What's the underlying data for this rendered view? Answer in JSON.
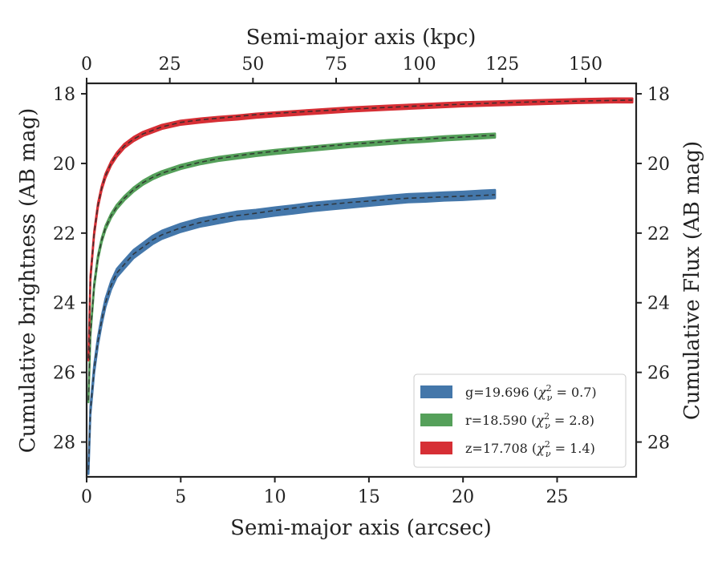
{
  "chart_data": {
    "type": "line",
    "xlabel": "Semi-major axis (arcsec)",
    "x2label": "Semi-major axis (kpc)",
    "ylabel": "Cumulative brightness (AB mag)",
    "y2label": "Cumulative Flux (AB mag)",
    "xlim": [
      0,
      29.2
    ],
    "x2lim": [
      0,
      165.2
    ],
    "ylim": [
      29.0,
      17.7
    ],
    "y_inverted": true,
    "xticks": [
      0,
      5,
      10,
      15,
      20,
      25
    ],
    "x2ticks": [
      0,
      25,
      50,
      75,
      100,
      125,
      150
    ],
    "yticks": [
      18,
      20,
      22,
      24,
      26,
      28
    ],
    "legend_position": "lower-right",
    "series": [
      {
        "name": "g=19.696 (χ²ν = 0.7)",
        "legend_main": "g=19.696 (",
        "legend_chi": "χ",
        "legend_eq": " = 0.7)",
        "color": "#4477aa",
        "width": 0.12,
        "x": [
          0.1,
          0.2,
          0.4,
          0.6,
          0.8,
          1.0,
          1.3,
          1.6,
          2.0,
          2.5,
          3.0,
          3.5,
          4.0,
          5.0,
          6.0,
          7.0,
          8.0,
          9.0,
          10.0,
          11.0,
          12.0,
          13.0,
          14.0,
          15.0,
          16.0,
          17.0,
          18.0,
          19.0,
          20.0,
          21.0,
          21.7
        ],
        "y": [
          28.8,
          27.1,
          25.9,
          25.1,
          24.5,
          24.0,
          23.5,
          23.15,
          22.9,
          22.6,
          22.4,
          22.2,
          22.05,
          21.85,
          21.7,
          21.6,
          21.5,
          21.45,
          21.38,
          21.32,
          21.25,
          21.2,
          21.15,
          21.1,
          21.05,
          21.0,
          20.98,
          20.95,
          20.93,
          20.9,
          20.88
        ],
        "model": [
          28.8,
          27.1,
          25.9,
          25.1,
          24.5,
          24.0,
          23.5,
          23.15,
          22.9,
          22.6,
          22.4,
          22.2,
          22.05,
          21.85,
          21.7,
          21.58,
          21.5,
          21.43,
          21.35,
          21.28,
          21.22,
          21.17,
          21.12,
          21.08,
          21.04,
          21.0,
          20.98,
          20.96,
          20.94,
          20.92,
          20.9
        ]
      },
      {
        "name": "r=18.590 (χ²ν = 2.8)",
        "legend_main": "r=18.590 (",
        "legend_chi": "χ",
        "legend_eq": " = 2.8)",
        "color": "#55a05a",
        "width": 0.06,
        "x": [
          0.1,
          0.2,
          0.4,
          0.6,
          0.8,
          1.0,
          1.3,
          1.6,
          2.0,
          2.5,
          3.0,
          3.5,
          4.0,
          5.0,
          6.0,
          7.0,
          8.0,
          9.0,
          10.0,
          11.0,
          12.0,
          13.0,
          14.0,
          15.0,
          16.0,
          17.0,
          18.0,
          19.0,
          20.0,
          21.0,
          21.7
        ],
        "y": [
          26.8,
          24.9,
          23.5,
          22.7,
          22.2,
          21.85,
          21.5,
          21.25,
          21.0,
          20.75,
          20.55,
          20.4,
          20.28,
          20.1,
          19.97,
          19.87,
          19.8,
          19.73,
          19.67,
          19.62,
          19.57,
          19.52,
          19.47,
          19.43,
          19.39,
          19.35,
          19.32,
          19.28,
          19.25,
          19.22,
          19.2
        ],
        "model": [
          26.8,
          24.9,
          23.5,
          22.7,
          22.2,
          21.85,
          21.5,
          21.25,
          21.0,
          20.75,
          20.55,
          20.4,
          20.28,
          20.1,
          19.97,
          19.86,
          19.78,
          19.71,
          19.65,
          19.59,
          19.54,
          19.49,
          19.45,
          19.41,
          19.37,
          19.33,
          19.3,
          19.27,
          19.24,
          19.21,
          19.19
        ]
      },
      {
        "name": "z=17.708 (χ²ν = 1.4)",
        "legend_main": "z=17.708 (",
        "legend_chi": "χ",
        "legend_eq": " = 1.4)",
        "color": "#d62f35",
        "width": 0.06,
        "x": [
          0.1,
          0.2,
          0.4,
          0.6,
          0.8,
          1.0,
          1.3,
          1.6,
          2.0,
          2.5,
          3.0,
          3.5,
          4.0,
          5.0,
          6.0,
          7.0,
          8.0,
          9.0,
          10.0,
          12.0,
          14.0,
          16.0,
          18.0,
          20.0,
          22.0,
          24.0,
          26.0,
          28.0,
          29.0
        ],
        "y": [
          25.6,
          23.3,
          22.0,
          21.2,
          20.7,
          20.35,
          20.0,
          19.75,
          19.5,
          19.3,
          19.15,
          19.05,
          18.95,
          18.83,
          18.77,
          18.72,
          18.68,
          18.63,
          18.59,
          18.52,
          18.45,
          18.4,
          18.35,
          18.3,
          18.27,
          18.24,
          18.21,
          18.19,
          18.19
        ],
        "model": [
          25.6,
          23.3,
          22.0,
          21.2,
          20.7,
          20.35,
          20.0,
          19.75,
          19.5,
          19.3,
          19.15,
          19.05,
          18.95,
          18.82,
          18.75,
          18.7,
          18.65,
          18.6,
          18.56,
          18.5,
          18.44,
          18.39,
          18.34,
          18.3,
          18.26,
          18.23,
          18.21,
          18.19,
          18.18
        ]
      }
    ]
  }
}
